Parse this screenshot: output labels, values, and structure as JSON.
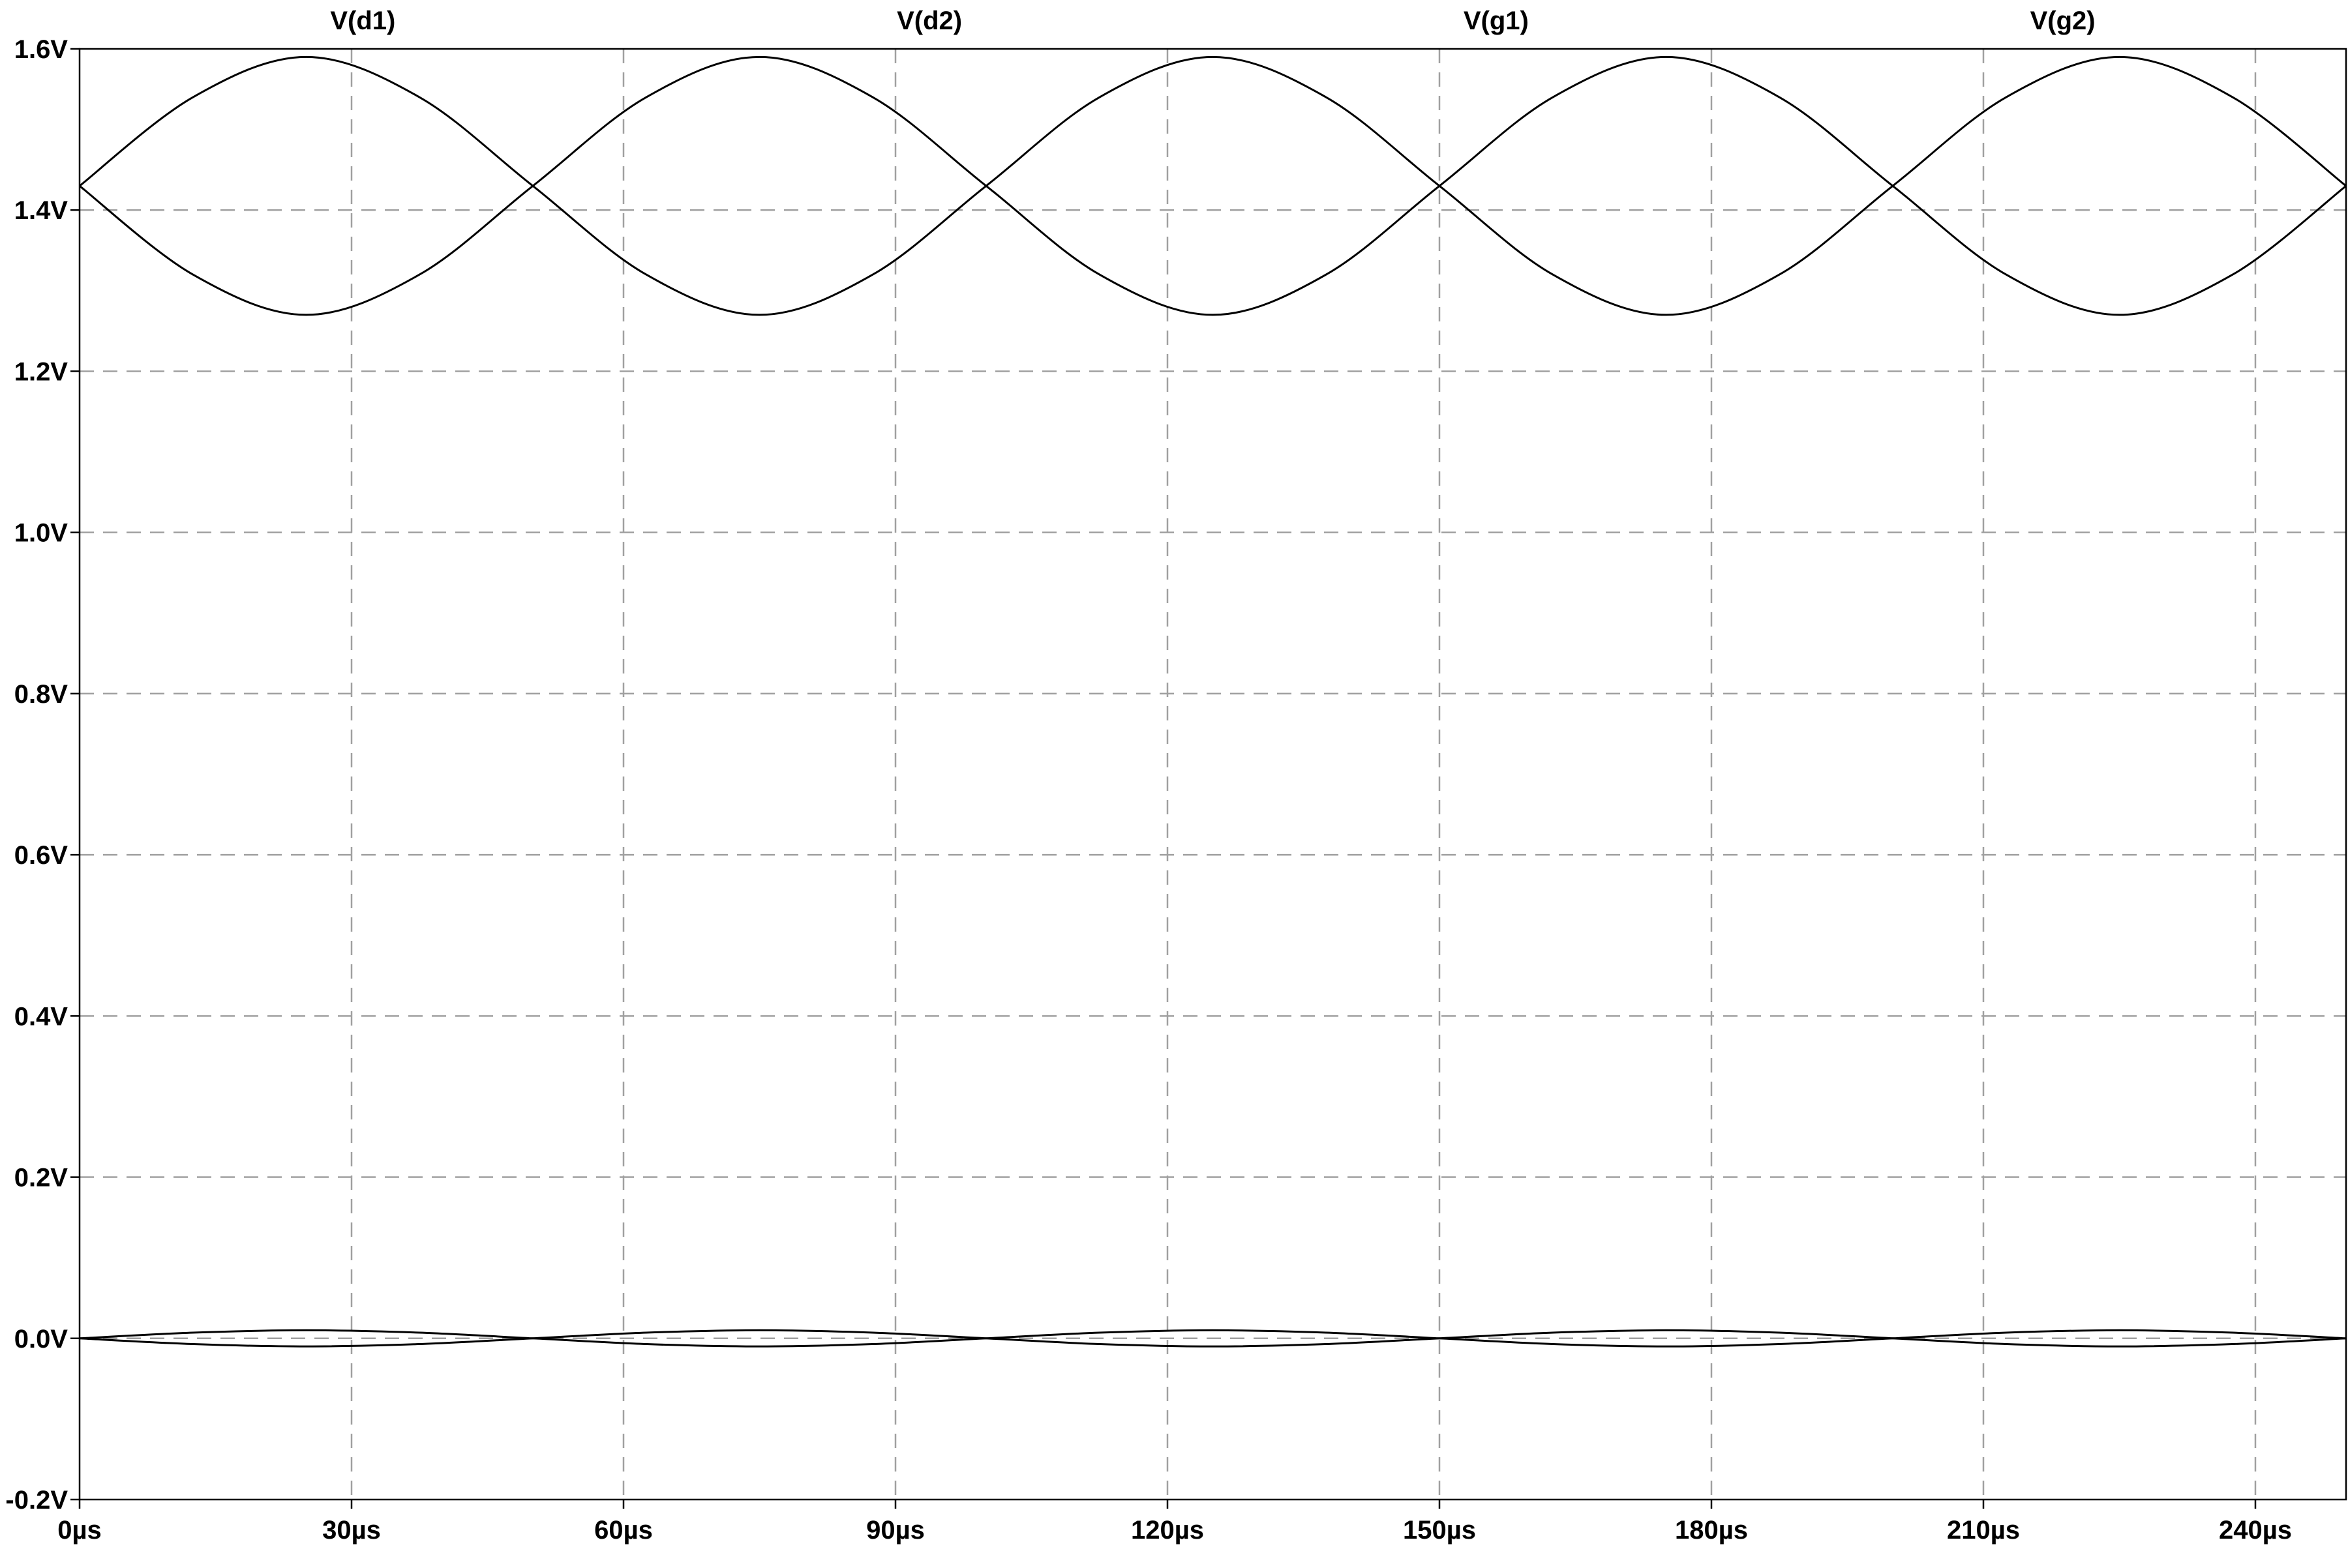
{
  "chart_data": {
    "type": "line",
    "title": "",
    "xlabel": "",
    "ylabel": "",
    "xlim": [
      0,
      250
    ],
    "ylim": [
      -0.2,
      1.6
    ],
    "grid": true,
    "legend_placement": "top",
    "x_ticks": [
      {
        "value": 0,
        "label": "0µs"
      },
      {
        "value": 30,
        "label": "30µs"
      },
      {
        "value": 60,
        "label": "60µs"
      },
      {
        "value": 90,
        "label": "90µs"
      },
      {
        "value": 120,
        "label": "120µs"
      },
      {
        "value": 150,
        "label": "150µs"
      },
      {
        "value": 180,
        "label": "180µs"
      },
      {
        "value": 210,
        "label": "210µs"
      },
      {
        "value": 240,
        "label": "240µs"
      }
    ],
    "y_ticks": [
      {
        "value": 1.6,
        "label": "1.6V"
      },
      {
        "value": 1.4,
        "label": "1.4V"
      },
      {
        "value": 1.2,
        "label": "1.2V"
      },
      {
        "value": 1.0,
        "label": "1.0V"
      },
      {
        "value": 0.8,
        "label": "0.8V"
      },
      {
        "value": 0.6,
        "label": "0.6V"
      },
      {
        "value": 0.4,
        "label": "0.4V"
      },
      {
        "value": 0.2,
        "label": "0.2V"
      },
      {
        "value": 0.0,
        "label": "0.0V"
      },
      {
        "value": -0.2,
        "label": "-0.2V"
      }
    ],
    "x": [
      0,
      12.5,
      25,
      37.5,
      50,
      62.5,
      75,
      87.5,
      100,
      112.5,
      125,
      137.5,
      150,
      162.5,
      175,
      187.5,
      200,
      212.5,
      225,
      237.5,
      250
    ],
    "series": [
      {
        "name": "V(d1)",
        "color": "#000000",
        "values": [
          1.43,
          1.54,
          1.59,
          1.54,
          1.43,
          1.32,
          1.27,
          1.32,
          1.43,
          1.54,
          1.59,
          1.54,
          1.43,
          1.32,
          1.27,
          1.32,
          1.43,
          1.54,
          1.59,
          1.54,
          1.43
        ]
      },
      {
        "name": "V(d2)",
        "color": "#000000",
        "values": [
          1.43,
          1.32,
          1.27,
          1.32,
          1.43,
          1.54,
          1.59,
          1.54,
          1.43,
          1.32,
          1.27,
          1.32,
          1.43,
          1.54,
          1.59,
          1.54,
          1.43,
          1.32,
          1.27,
          1.32,
          1.43
        ]
      },
      {
        "name": "V(g1)",
        "color": "#000000",
        "values": [
          0,
          0.0071,
          0.01,
          0.0071,
          0,
          -0.0071,
          -0.01,
          -0.0071,
          0,
          0.0071,
          0.01,
          0.0071,
          0,
          -0.0071,
          -0.01,
          -0.0071,
          0,
          0.0071,
          0.01,
          0.0071,
          0
        ]
      },
      {
        "name": "V(g2)",
        "color": "#000000",
        "values": [
          0,
          -0.0071,
          -0.01,
          -0.0071,
          0,
          0.0071,
          0.01,
          0.0071,
          0,
          -0.0071,
          -0.01,
          -0.0071,
          0,
          0.0071,
          0.01,
          0.0071,
          0,
          -0.0071,
          -0.01,
          -0.0071,
          0
        ]
      }
    ]
  }
}
